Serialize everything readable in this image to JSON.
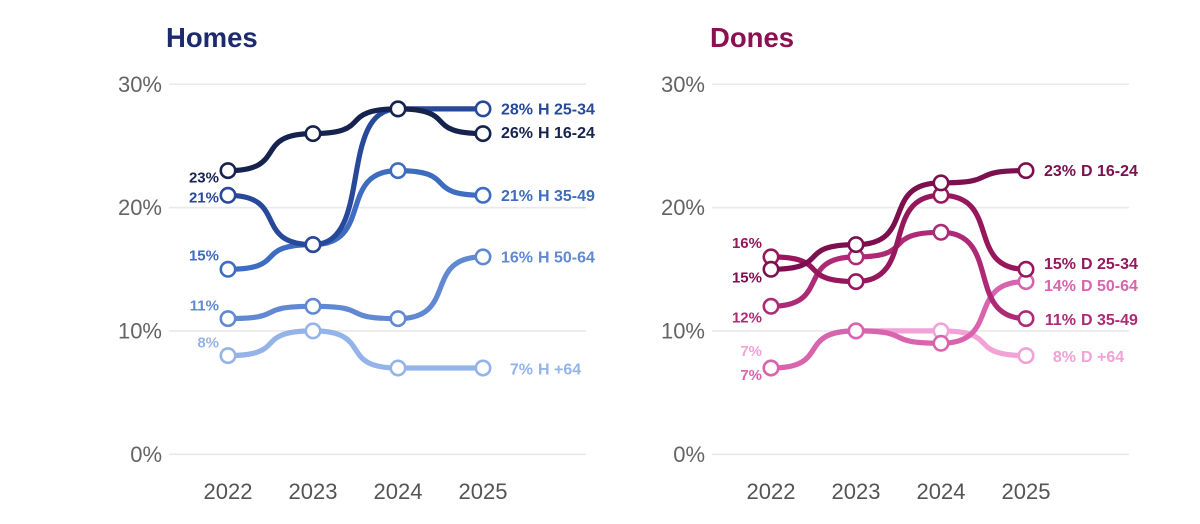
{
  "chart_data": [
    {
      "type": "line",
      "title": "Homes",
      "title_color": "#1c2b6d",
      "x": [
        "2022",
        "2023",
        "2024",
        "2025"
      ],
      "ylim": [
        0,
        30
      ],
      "grid": "horizontal",
      "grid_color": "#e9e9e9",
      "y_ticks": [
        {
          "label": "30%",
          "value": 30
        },
        {
          "label": "20%",
          "value": 20
        },
        {
          "label": "10%",
          "value": 10
        },
        {
          "label": "0%",
          "value": 0
        }
      ],
      "point_fill": "#ffffff",
      "series": [
        {
          "name": "H +64",
          "color": "#93b3e9",
          "values": [
            8,
            10,
            7,
            7
          ],
          "start_label": "8%",
          "start_label_dy": -13,
          "end_value": "7%",
          "end_text": "H +64",
          "end_label_dy": 1
        },
        {
          "name": "H 50-64",
          "color": "#6189d2",
          "values": [
            11,
            12,
            11,
            16
          ],
          "start_label": "11%",
          "start_label_dy": -13,
          "end_value": "16%",
          "end_text": "H 50-64",
          "end_label_dy": 0
        },
        {
          "name": "H 35-49",
          "color": "#3e6cc0",
          "values": [
            15,
            17,
            23,
            21
          ],
          "start_label": "15%",
          "start_label_dy": -14,
          "end_value": "21%",
          "end_text": "H 35-49",
          "end_label_dy": 0
        },
        {
          "name": "H 25-34",
          "color": "#28499a",
          "values": [
            21,
            17,
            28,
            28
          ],
          "start_label": "21%",
          "start_label_dy": 2,
          "end_value": "28%",
          "end_text": "H 25-34",
          "end_label_dy": 0
        },
        {
          "name": "H 16-24",
          "color": "#16234f",
          "values": [
            23,
            26,
            28,
            26
          ],
          "start_label": "23%",
          "start_label_dy": 7,
          "end_value": "26%",
          "end_text": "H 16-24",
          "end_label_dy": -1
        }
      ]
    },
    {
      "type": "line",
      "title": "Dones",
      "title_color": "#8c1052",
      "x": [
        "2022",
        "2023",
        "2024",
        "2025"
      ],
      "ylim": [
        0,
        30
      ],
      "grid": "horizontal",
      "grid_color": "#e9e9e9",
      "y_ticks": [
        {
          "label": "30%",
          "value": 30
        },
        {
          "label": "20%",
          "value": 20
        },
        {
          "label": "10%",
          "value": 10
        },
        {
          "label": "0%",
          "value": 0
        }
      ],
      "point_fill": "#ffffff",
      "series": [
        {
          "name": "D +64",
          "color": "#f2a2d7",
          "values": [
            7,
            10,
            10,
            8
          ],
          "start_label": "7%",
          "start_label_dy": -17,
          "end_value": "8%",
          "end_text": "D +64",
          "end_label_dy": 1
        },
        {
          "name": "D 50-64",
          "color": "#d964ae",
          "values": [
            7,
            10,
            9,
            14
          ],
          "start_label": "7%",
          "start_label_dy": 7,
          "end_value": "14%",
          "end_text": "D 50-64",
          "end_label_dy": 4
        },
        {
          "name": "D 35-49",
          "color": "#ad2b76",
          "values": [
            12,
            16,
            18,
            11
          ],
          "start_label": "12%",
          "start_label_dy": 11,
          "end_value": "11%",
          "end_text": "D 35-49",
          "end_label_dy": 1
        },
        {
          "name": "D 25-34",
          "color": "#97175c",
          "values": [
            16,
            14,
            21,
            15
          ],
          "start_label": "16%",
          "start_label_dy": -14,
          "end_value": "15%",
          "end_text": "D 25-34",
          "end_label_dy": -6
        },
        {
          "name": "D 16-24",
          "color": "#7c0f4e",
          "values": [
            15,
            17,
            22,
            23
          ],
          "start_label": "15%",
          "start_label_dy": 8,
          "end_value": "23%",
          "end_text": "D 16-24",
          "end_label_dy": 0
        }
      ]
    }
  ]
}
